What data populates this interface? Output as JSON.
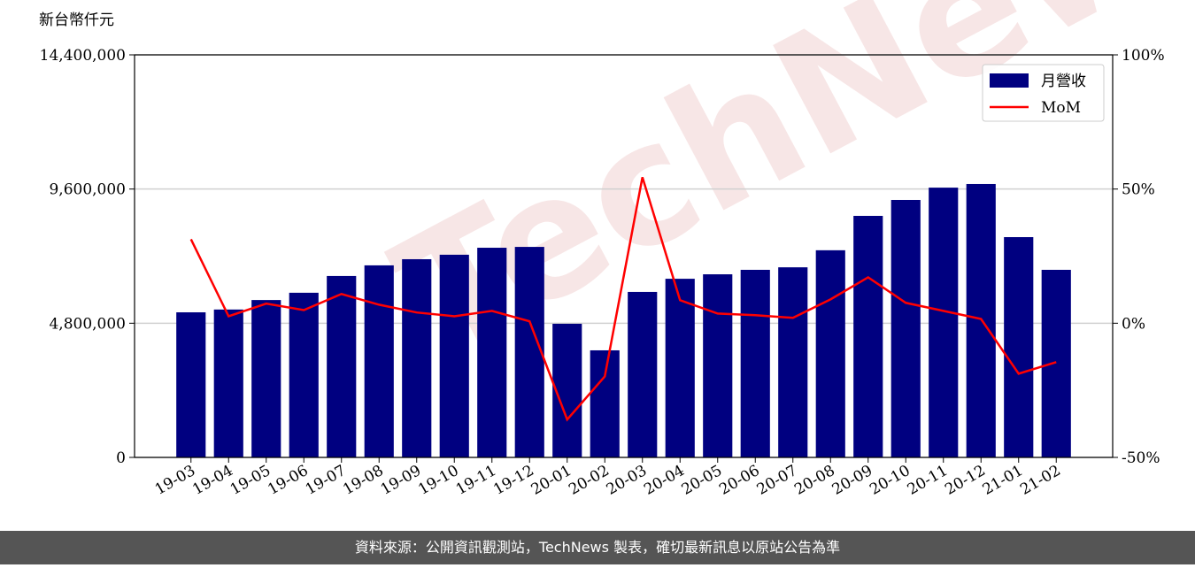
{
  "chart_data": {
    "type": "bar-line",
    "y_label": "新台幣仟元",
    "watermark": "TechNews",
    "footer": "資料來源：公開資訊觀測站，TechNews 製表，確切最新訊息以原站公告為準",
    "categories": [
      "19-03",
      "19-04",
      "19-05",
      "19-06",
      "19-07",
      "19-08",
      "19-09",
      "19-10",
      "19-11",
      "19-12",
      "20-01",
      "20-02",
      "20-03",
      "20-04",
      "20-05",
      "20-06",
      "20-07",
      "20-08",
      "20-09",
      "20-10",
      "20-11",
      "20-12",
      "21-01",
      "21-02"
    ],
    "series": [
      {
        "name": "月營收",
        "type": "bar",
        "color": "#000080",
        "values": [
          5190000,
          5290000,
          5630000,
          5890000,
          6490000,
          6870000,
          7090000,
          7250000,
          7500000,
          7530000,
          4780000,
          3830000,
          5920000,
          6390000,
          6550000,
          6710000,
          6800000,
          7410000,
          8640000,
          9210000,
          9650000,
          9780000,
          7880000,
          6710000
        ]
      },
      {
        "name": "MoM",
        "type": "line",
        "axis": "y2",
        "color": "#ff0000",
        "values": [
          31.3,
          2.6,
          7.3,
          4.9,
          10.9,
          6.9,
          4.0,
          2.6,
          4.6,
          0.7,
          -35.9,
          -19.8,
          54.4,
          8.6,
          3.6,
          3.0,
          2.0,
          8.9,
          17.1,
          7.6,
          4.6,
          1.6,
          -18.8,
          -14.5
        ]
      }
    ],
    "ylim": [
      0,
      14400000
    ],
    "yticks": [
      {
        "value": 0,
        "label": "0"
      },
      {
        "value": 4800000,
        "label": "4,800,000"
      },
      {
        "value": 9600000,
        "label": "9,600,000"
      },
      {
        "value": 14400000,
        "label": "14,400,000"
      }
    ],
    "y2lim": [
      -50,
      100
    ],
    "y2ticks": [
      {
        "value": -50,
        "label": "-50%"
      },
      {
        "value": 0,
        "label": "0%"
      },
      {
        "value": 50,
        "label": "50%"
      },
      {
        "value": 100,
        "label": "100%"
      }
    ],
    "grid": true,
    "legend": "upper right"
  }
}
